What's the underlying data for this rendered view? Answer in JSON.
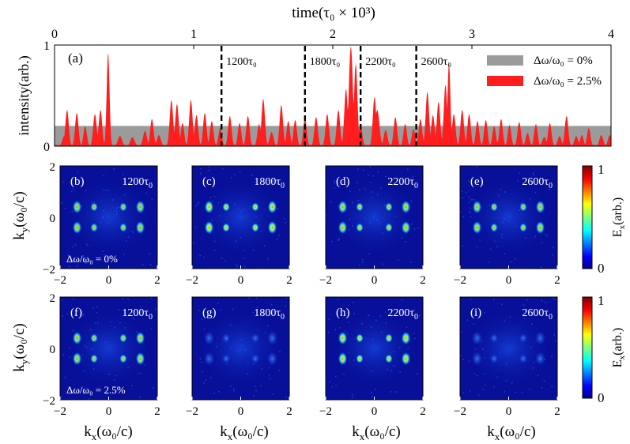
{
  "chart_data": [
    {
      "type": "area",
      "panel": "(a)",
      "title": "time(τ0 × 10^3)",
      "top_axis_label": "time(τ₀ × 10³)",
      "xlim": [
        0,
        4
      ],
      "x_ticks": [
        "0",
        "1",
        "2",
        "3",
        "4"
      ],
      "ylabel": "intensity(arb.)",
      "ylim": [
        0,
        1
      ],
      "y_ticks": [
        "0",
        "1"
      ],
      "series": [
        {
          "name": "Δω/ω0 = 0%",
          "legend": "Δω/ω₀ = 0%",
          "color": "#999c9a",
          "values_const": 0.2
        },
        {
          "name": "Δω/ω0 = 2.5%",
          "legend": "Δω/ω₀ = 2.5%",
          "color": "#ff1d1d",
          "peaks": [
            [
              0.07,
              0.1,
              0.014
            ],
            [
              0.09,
              0.36,
              0.012
            ],
            [
              0.16,
              0.33,
              0.012
            ],
            [
              0.22,
              0.2,
              0.012
            ],
            [
              0.29,
              0.32,
              0.012
            ],
            [
              0.33,
              0.36,
              0.012
            ],
            [
              0.385,
              0.93,
              0.01
            ],
            [
              0.47,
              0.1,
              0.015
            ],
            [
              0.56,
              0.09,
              0.015
            ],
            [
              0.65,
              0.15,
              0.014
            ],
            [
              0.7,
              0.27,
              0.012
            ],
            [
              0.75,
              0.11,
              0.014
            ],
            [
              0.84,
              0.46,
              0.012
            ],
            [
              0.88,
              0.42,
              0.012
            ],
            [
              0.92,
              0.23,
              0.012
            ],
            [
              0.98,
              0.46,
              0.012
            ],
            [
              1.02,
              0.31,
              0.012
            ],
            [
              1.08,
              0.33,
              0.012
            ],
            [
              1.13,
              0.25,
              0.012
            ],
            [
              1.19,
              0.18,
              0.012
            ],
            [
              1.26,
              0.3,
              0.012
            ],
            [
              1.33,
              0.23,
              0.012
            ],
            [
              1.39,
              0.3,
              0.012
            ],
            [
              1.47,
              0.22,
              0.012
            ],
            [
              1.5,
              0.47,
              0.012
            ],
            [
              1.56,
              0.14,
              0.014
            ],
            [
              1.63,
              0.41,
              0.012
            ],
            [
              1.68,
              0.25,
              0.012
            ],
            [
              1.73,
              0.26,
              0.012
            ],
            [
              1.8,
              0.28,
              0.012
            ],
            [
              1.88,
              0.29,
              0.012
            ],
            [
              1.96,
              0.32,
              0.012
            ],
            [
              2.04,
              0.36,
              0.012
            ],
            [
              2.095,
              0.57,
              0.012
            ],
            [
              2.13,
              0.99,
              0.014
            ],
            [
              2.165,
              0.82,
              0.012
            ],
            [
              2.2,
              0.21,
              0.012
            ],
            [
              2.3,
              0.49,
              0.012
            ],
            [
              2.32,
              0.36,
              0.015
            ],
            [
              2.38,
              0.16,
              0.013
            ],
            [
              2.45,
              0.29,
              0.012
            ],
            [
              2.52,
              0.22,
              0.012
            ],
            [
              2.58,
              0.17,
              0.012
            ],
            [
              2.63,
              0.27,
              0.012
            ],
            [
              2.68,
              0.54,
              0.012
            ],
            [
              2.72,
              0.31,
              0.012
            ],
            [
              2.76,
              0.44,
              0.012
            ],
            [
              2.81,
              0.61,
              0.012
            ],
            [
              2.835,
              0.83,
              0.01
            ],
            [
              2.87,
              0.32,
              0.012
            ],
            [
              2.93,
              0.36,
              0.012
            ],
            [
              2.98,
              0.32,
              0.012
            ],
            [
              3.04,
              0.25,
              0.012
            ],
            [
              3.1,
              0.26,
              0.012
            ],
            [
              3.16,
              0.2,
              0.012
            ],
            [
              3.21,
              0.27,
              0.012
            ],
            [
              3.27,
              0.21,
              0.012
            ],
            [
              3.34,
              0.24,
              0.012
            ],
            [
              3.4,
              0.13,
              0.013
            ],
            [
              3.46,
              0.22,
              0.012
            ],
            [
              3.52,
              0.09,
              0.014
            ],
            [
              3.56,
              0.23,
              0.012
            ],
            [
              3.63,
              0.1,
              0.013
            ],
            [
              3.68,
              0.3,
              0.012
            ],
            [
              3.75,
              0.1,
              0.013
            ],
            [
              3.79,
              0.11,
              0.012
            ],
            [
              3.84,
              0.18,
              0.012
            ],
            [
              3.93,
              0.11,
              0.013
            ],
            [
              3.99,
              0.11,
              0.012
            ]
          ]
        }
      ],
      "markers": [
        {
          "x": 1.2,
          "label": "1200τ₀"
        },
        {
          "x": 1.8,
          "label": "1800τ₀"
        },
        {
          "x": 2.2,
          "label": "2200τ₀"
        },
        {
          "x": 2.6,
          "label": "2600τ₀"
        }
      ]
    },
    {
      "type": "heatmap",
      "xlabel": "kx(ω0/c)",
      "xlabel_main": "k",
      "xlabel_sub": "x",
      "xlabel_tail": "(ω₀/c)",
      "ylabel": "ky(ω0/c)",
      "ylabel_main": "k",
      "ylabel_sub": "y",
      "ylabel_tail": "(ω₀/c)",
      "xlim": [
        -2,
        2
      ],
      "ylim": [
        -2,
        2
      ],
      "x_ticks": [
        "−2",
        "0",
        "2"
      ],
      "y_ticks": [
        "2",
        "0",
        "−2"
      ],
      "colorbar": {
        "label": "Ex(arb.)",
        "label_main": "E",
        "label_sub": "x",
        "label_tail": "(arb.)",
        "range": [
          0,
          1
        ],
        "ticks": [
          "1",
          "0"
        ]
      },
      "rows": [
        {
          "condition": "Δω/ω0 = 0%",
          "annotation": "Δω/ω₀ = 0%",
          "panels": [
            {
              "label": "(b)",
              "time_main": "1200τ",
              "time_sub": "0",
              "intensity": 0.75
            },
            {
              "label": "(c)",
              "time_main": "1800τ",
              "time_sub": "0",
              "intensity": 1.0
            },
            {
              "label": "(d)",
              "time_main": "2200τ",
              "time_sub": "0",
              "intensity": 0.85
            },
            {
              "label": "(e)",
              "time_main": "2600τ",
              "time_sub": "0",
              "intensity": 0.8
            }
          ]
        },
        {
          "condition": "Δω/ω0 = 2.5%",
          "annotation": "Δω/ω₀ = 2.5%",
          "panels": [
            {
              "label": "(f)",
              "time_main": "1200τ",
              "time_sub": "0",
              "intensity": 0.8
            },
            {
              "label": "(g)",
              "time_main": "1800τ",
              "time_sub": "0",
              "intensity": 0.22
            },
            {
              "label": "(h)",
              "time_main": "2200τ",
              "time_sub": "0",
              "intensity": 0.95
            },
            {
              "label": "(i)",
              "time_main": "2600τ",
              "time_sub": "0",
              "intensity": 0.25
            }
          ]
        }
      ],
      "spot_kx": [
        -1.3,
        -0.6,
        0.6,
        1.3
      ],
      "spot_ky": [
        0.4,
        -0.4
      ]
    }
  ]
}
